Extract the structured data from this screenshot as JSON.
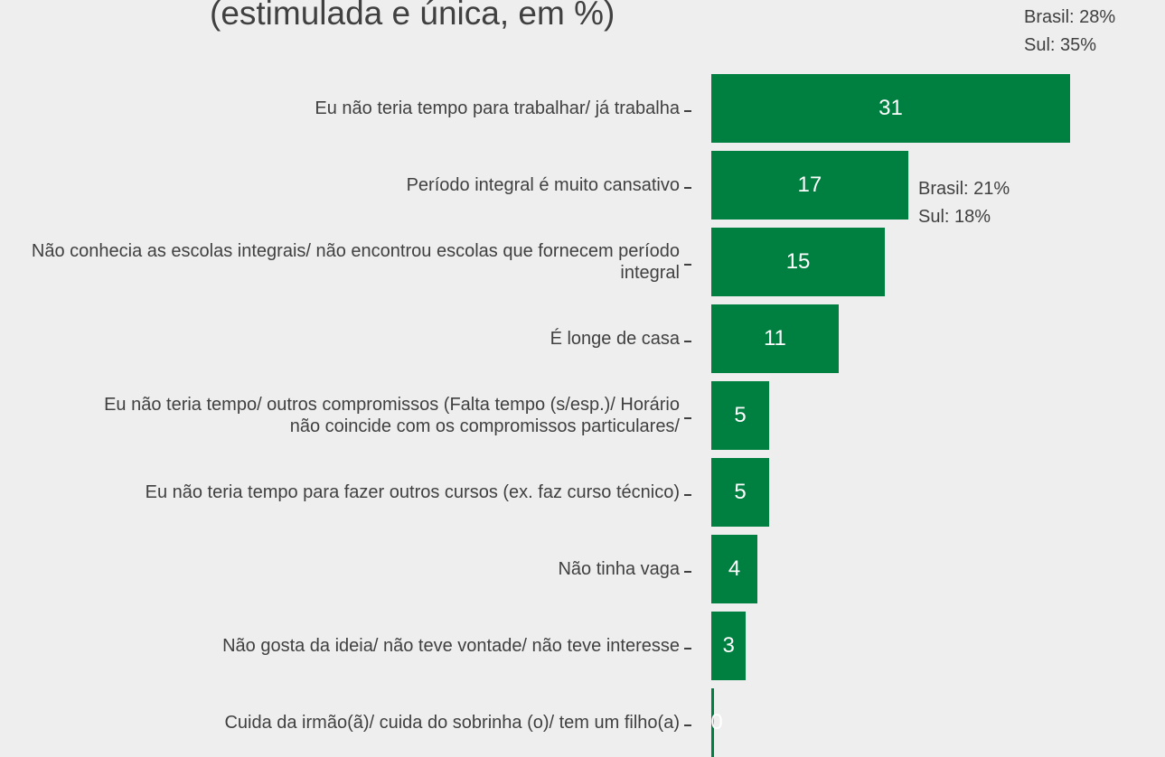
{
  "chart_data": {
    "type": "bar",
    "orientation": "horizontal",
    "title": "(estimulada e única, em %)",
    "categories": [
      "Eu não teria tempo para trabalhar/ já trabalha",
      "Período integral é muito cansativo",
      "Não conhecia as escolas integrais/ não encontrou escolas que fornecem período integral",
      "É longe de casa",
      "Eu não teria tempo/ outros compromissos (Falta tempo (s/esp.)/ Horário não coincide com os compromissos particulares/",
      "Eu não teria tempo para fazer outros cursos (ex. faz curso técnico)",
      "Não tinha vaga",
      "Não gosta da ideia/ não teve vontade/ não teve interesse",
      "Cuida da irmão(ã)/ cuida do sobrinha (o)/ tem um filho(a)"
    ],
    "values": [
      31,
      17,
      15,
      11,
      5,
      5,
      4,
      3,
      0
    ],
    "color": "#008040",
    "xlim": [
      0,
      31
    ],
    "annotations": [
      {
        "lines": [
          "Brasil: 28%",
          "Sul: 35%"
        ]
      },
      {
        "lines": [
          "Brasil: 21%",
          "Sul: 18%"
        ]
      }
    ]
  }
}
